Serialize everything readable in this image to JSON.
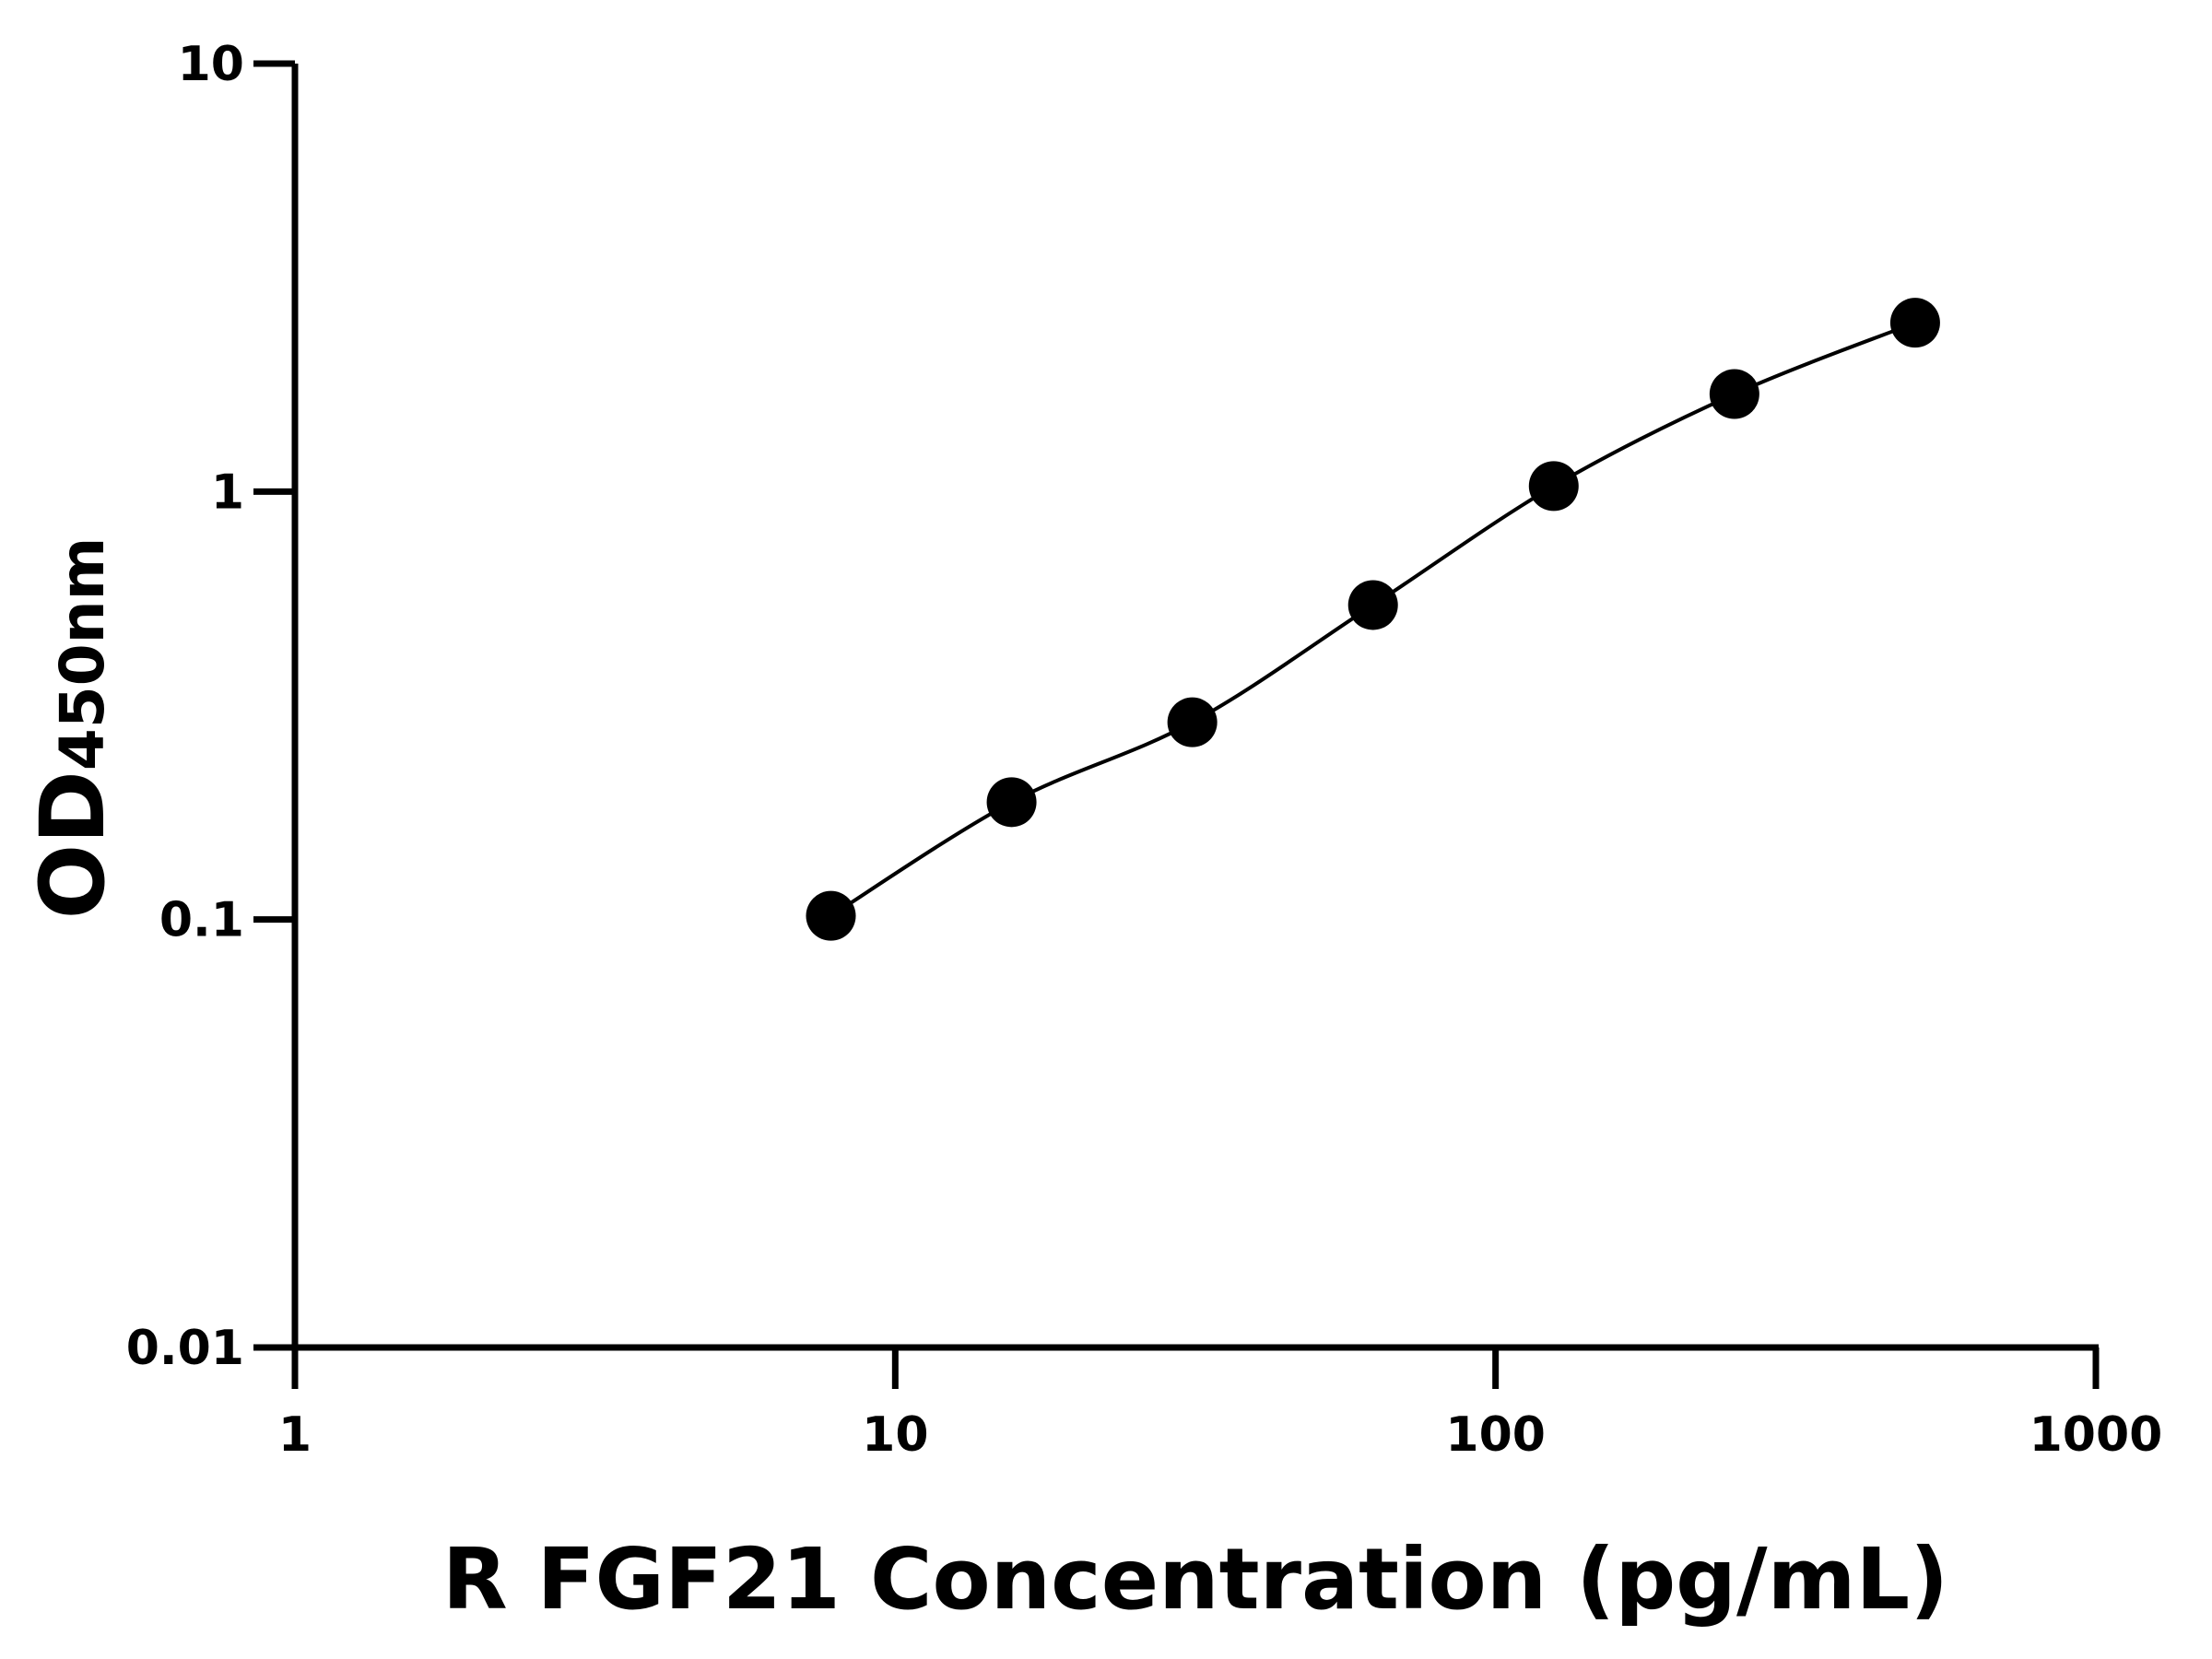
{
  "chart_data": {
    "type": "scatter",
    "title": "",
    "xlabel": "R FGF21 Concentration (pg/mL)",
    "ylabel": "OD",
    "ylabel_subscript": "450nm",
    "x_scale": "log",
    "y_scale": "log",
    "xlim": [
      1,
      1000
    ],
    "ylim": [
      0.01,
      10
    ],
    "x_ticks": [
      "1",
      "10",
      "100",
      "1000"
    ],
    "y_ticks": [
      "0.01",
      "0.1",
      "1",
      "10"
    ],
    "grid": false,
    "legend": "none",
    "fit_curve": true,
    "marker_color": "#000000",
    "series": [
      {
        "x": [
          7.8125,
          15.625,
          31.25,
          62.5,
          125,
          250,
          500
        ],
        "y": [
          0.102,
          0.188,
          0.289,
          0.543,
          1.03,
          1.69,
          2.48
        ]
      }
    ]
  }
}
